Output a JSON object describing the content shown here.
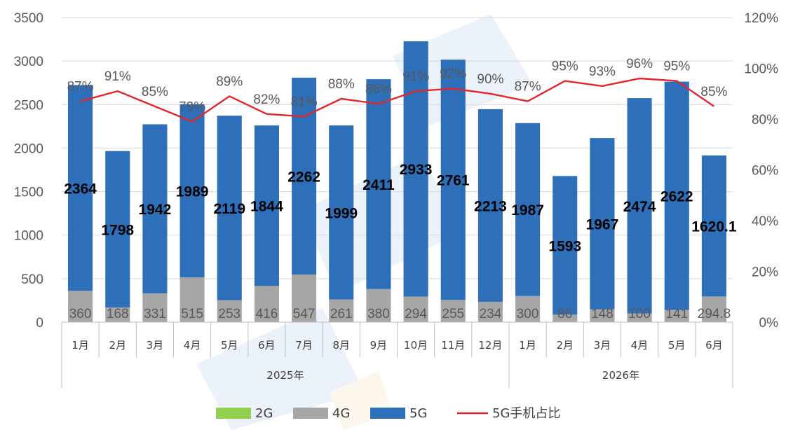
{
  "chart_data": {
    "type": "bar",
    "stacked": true,
    "secondary_axis": true,
    "groups": [
      {
        "label": "2025年",
        "categories": [
          "1月",
          "2月",
          "3月",
          "4月",
          "5月",
          "6月",
          "7月",
          "8月",
          "9月",
          "10月",
          "11月",
          "12月"
        ]
      },
      {
        "label": "2026年",
        "categories": [
          "1月",
          "2月",
          "3月",
          "4月",
          "5月",
          "6月"
        ]
      }
    ],
    "categories": [
      "1月",
      "2月",
      "3月",
      "4月",
      "5月",
      "6月",
      "7月",
      "8月",
      "9月",
      "10月",
      "11月",
      "12月",
      "1月",
      "2月",
      "3月",
      "4月",
      "5月",
      "6月"
    ],
    "series": [
      {
        "name": "2G",
        "color": "#92d050",
        "values": [
          0,
          0,
          0,
          0,
          0,
          0,
          0,
          0,
          0,
          0,
          0,
          0,
          0,
          0,
          0,
          0,
          0,
          0
        ]
      },
      {
        "name": "4G",
        "color": "#a6a6a6",
        "values": [
          360,
          168,
          331,
          515,
          253,
          416,
          547,
          261,
          380,
          294,
          255,
          234,
          300,
          86,
          148,
          100,
          141,
          294.8
        ]
      },
      {
        "name": "5G",
        "color": "#2e6fba",
        "values": [
          2364,
          1798,
          1942,
          1989,
          2119,
          1844,
          2262,
          1999,
          2411,
          2933,
          2761,
          2213,
          1987,
          1593,
          1967,
          2474,
          2622,
          1620.1
        ]
      }
    ],
    "line_series": {
      "name": "5G手机占比",
      "color": "#e3262a",
      "values": [
        87,
        91,
        85,
        79,
        89,
        82,
        81,
        88,
        86,
        91,
        92,
        90,
        87,
        95,
        93,
        96,
        95,
        85
      ],
      "unit": "%"
    },
    "value_labels_4g": [
      "360",
      "168",
      "331",
      "515",
      "253",
      "416",
      "547",
      "261",
      "380",
      "294",
      "255",
      "234",
      "300",
      "86",
      "148",
      "100",
      "141",
      "294.8"
    ],
    "value_labels_5g": [
      "2364",
      "1798",
      "1942",
      "1989",
      "2119",
      "1844",
      "2262",
      "1999",
      "2411",
      "2933",
      "2761",
      "2213",
      "1987",
      "1593",
      "1967",
      "2474",
      "2622",
      "1620.1"
    ],
    "value_labels_pct": [
      "87%",
      "91%",
      "85%",
      "79%",
      "89%",
      "82%",
      "81%",
      "88%",
      "86%",
      "91%",
      "92%",
      "90%",
      "87%",
      "95%",
      "93%",
      "96%",
      "95%",
      "85%"
    ],
    "y_left": {
      "ticks": [
        "0",
        "500",
        "1000",
        "1500",
        "2000",
        "2500",
        "3000",
        "3500"
      ],
      "range": [
        0,
        3500
      ]
    },
    "y_right": {
      "ticks": [
        "0%",
        "20%",
        "40%",
        "60%",
        "80%",
        "100%",
        "120%"
      ],
      "range": [
        0,
        120
      ]
    },
    "legend": {
      "placement": "bottom",
      "items": [
        "2G",
        "4G",
        "5G",
        "5G手机占比"
      ]
    },
    "title": "",
    "xlabel": "",
    "ylabel": ""
  }
}
